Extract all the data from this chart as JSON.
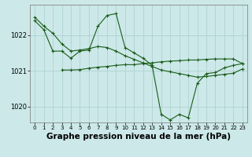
{
  "background_color": "#cce8e8",
  "grid_color": "#aacfcf",
  "line_color": "#1a5c1a",
  "marker_color": "#1a5c1a",
  "xlabel": "Graphe pression niveau de la mer (hPa)",
  "xlabel_fontsize": 7.5,
  "xlim": [
    -0.5,
    23.5
  ],
  "ylim": [
    1019.55,
    1022.85
  ],
  "yticks": [
    1020,
    1021,
    1022
  ],
  "xticks": [
    0,
    1,
    2,
    3,
    4,
    5,
    6,
    7,
    8,
    9,
    10,
    11,
    12,
    13,
    14,
    15,
    16,
    17,
    18,
    19,
    20,
    21,
    22,
    23
  ],
  "line1_x": [
    0,
    1,
    2,
    3,
    4,
    5,
    6,
    7,
    8,
    9,
    10,
    11,
    12,
    13,
    14,
    15,
    16,
    17,
    18,
    19,
    20,
    21,
    22,
    23
  ],
  "line1_y": [
    1022.5,
    1022.25,
    1022.05,
    1021.75,
    1021.55,
    1021.58,
    1021.62,
    1021.68,
    1021.65,
    1021.55,
    1021.42,
    1021.32,
    1021.22,
    1021.12,
    1021.02,
    1020.97,
    1020.92,
    1020.87,
    1020.82,
    1020.84,
    1020.87,
    1020.9,
    1020.93,
    1021.05
  ],
  "line2_x": [
    0,
    1,
    2,
    3,
    4,
    5,
    6,
    7,
    8,
    9,
    10,
    11,
    12,
    13,
    14,
    15,
    16,
    17,
    18,
    19,
    20,
    21,
    22,
    23
  ],
  "line2_y": [
    1022.4,
    1022.15,
    1021.55,
    1021.55,
    1021.35,
    1021.55,
    1021.58,
    1022.25,
    1022.55,
    1022.6,
    1021.65,
    1021.5,
    1021.35,
    1021.15,
    1019.78,
    1019.62,
    1019.78,
    1019.68,
    1020.65,
    1020.92,
    1020.95,
    1021.08,
    1021.15,
    1021.2
  ],
  "line3_x": [
    3,
    4,
    5,
    6,
    7,
    8,
    9,
    10,
    11,
    12,
    13,
    14,
    15,
    16,
    17,
    18,
    19,
    20,
    21,
    22,
    23
  ],
  "line3_y": [
    1021.02,
    1021.02,
    1021.03,
    1021.07,
    1021.1,
    1021.12,
    1021.15,
    1021.17,
    1021.17,
    1021.2,
    1021.22,
    1021.25,
    1021.27,
    1021.28,
    1021.3,
    1021.3,
    1021.32,
    1021.33,
    1021.33,
    1021.33,
    1021.2
  ]
}
